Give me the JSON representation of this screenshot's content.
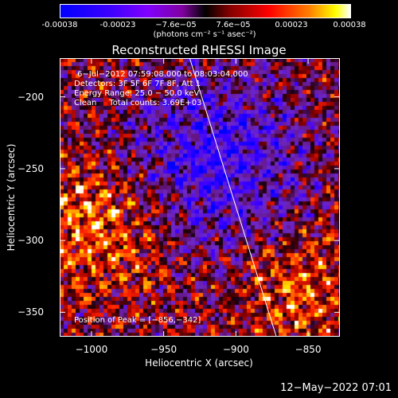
{
  "colorbar": {
    "ticks": [
      "-0.00038",
      "-0.00023",
      "−7.6e−05",
      "7.6e−05",
      "0.00023",
      "0.00038"
    ],
    "units": "(photons cm⁻² s⁻¹ asec⁻²)"
  },
  "chart_data": {
    "type": "heatmap",
    "title": "Reconstructed RHESSI Image",
    "xlabel": "Heliocentric X (arcsec)",
    "ylabel": "Heliocentric Y (arcsec)",
    "xlim": [
      -1022,
      -828
    ],
    "ylim": [
      -367,
      -173
    ],
    "xticks": [
      -1000,
      -950,
      -900,
      -850
    ],
    "yticks": [
      -200,
      -250,
      -300,
      -350
    ],
    "xtick_labels": [
      "−1000",
      "−950",
      "−900",
      "−850"
    ],
    "ytick_labels": [
      "−200",
      "−250",
      "−300",
      "−350"
    ],
    "color_range": [
      -0.00038,
      0.00038
    ],
    "peak": [
      -856,
      -342
    ],
    "limb_line": [
      [
        -932,
        -173
      ],
      [
        -872,
        -367
      ]
    ]
  },
  "annotations": {
    "time_range": "6−Jul−2012 07:59:08.000 to 08:03:04.000",
    "detectors": "Detectors: 3F 5F 6F 7F 8F, Att 1",
    "energy": "Energy Range: 25.0 − 50.0 keV",
    "clean_counts": "Clean     Total counts: 3.69E+03",
    "peak_position": "Position of Peak = [−856,−342]"
  },
  "footer": {
    "timestamp": "12−May−2022 07:01"
  }
}
